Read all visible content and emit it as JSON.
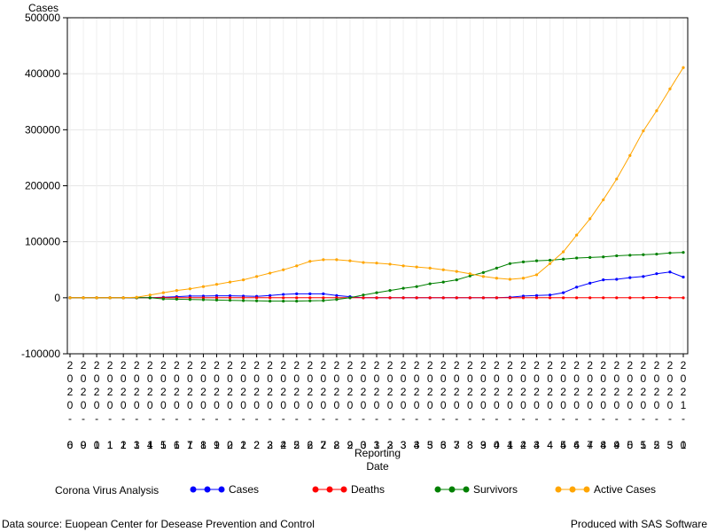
{
  "chart_data": {
    "type": "line",
    "ylabel": "Cases",
    "xlabel_line1": "Reporting",
    "xlabel_line2": "Date",
    "ylim": [
      -100000,
      500000
    ],
    "yticks": [
      -100000,
      0,
      100000,
      200000,
      300000,
      400000,
      500000
    ],
    "grid": true,
    "categories": [
      "2020-06",
      "2020-09",
      "2020-10",
      "2020-11",
      "2020-12",
      "2020-13",
      "2020-14",
      "2020-15",
      "2020-16",
      "2020-17",
      "2020-18",
      "2020-19",
      "2020-20",
      "2020-21",
      "2020-22",
      "2020-23",
      "2020-24",
      "2020-25",
      "2020-26",
      "2020-27",
      "2020-28",
      "2020-29",
      "2020-30",
      "2020-31",
      "2020-32",
      "2020-33",
      "2020-34",
      "2020-35",
      "2020-36",
      "2020-37",
      "2020-38",
      "2020-39",
      "2020-40",
      "2020-41",
      "2020-42",
      "2020-43",
      "2020-44",
      "2020-45",
      "2020-46",
      "2020-47",
      "2020-48",
      "2020-49",
      "2020-50",
      "2020-51",
      "2020-52",
      "2020-53",
      "2021-01"
    ],
    "series": [
      {
        "name": "Cases",
        "color": "#0000ff",
        "values": [
          0,
          0,
          0,
          0,
          0,
          0,
          0,
          1000,
          2000,
          3000,
          3000,
          3500,
          3500,
          3000,
          2500,
          4000,
          6000,
          7000,
          7000,
          7000,
          4000,
          2000,
          0,
          0,
          0,
          0,
          0,
          0,
          0,
          0,
          0,
          0,
          0,
          1000,
          3000,
          4000,
          5000,
          9000,
          19000,
          26000,
          32000,
          33000,
          36000,
          38000,
          43000,
          46000,
          37000
        ]
      },
      {
        "name": "Deaths",
        "color": "#ff0000",
        "values": [
          0,
          0,
          0,
          0,
          0,
          0,
          0,
          0,
          0,
          0,
          0,
          0,
          0,
          0,
          0,
          0,
          0,
          0,
          0,
          0,
          0,
          0,
          0,
          0,
          0,
          0,
          0,
          0,
          0,
          0,
          0,
          0,
          0,
          0,
          0,
          0,
          0,
          0,
          0,
          0,
          0,
          0,
          0,
          0,
          500,
          0,
          0
        ]
      },
      {
        "name": "Survivors",
        "color": "#008000",
        "values": [
          0,
          0,
          0,
          0,
          0,
          0,
          0,
          -2000,
          -2500,
          -3000,
          -3500,
          -4000,
          -4500,
          -5000,
          -5500,
          -6000,
          -6000,
          -6000,
          -5500,
          -5000,
          -3000,
          0,
          5000,
          9000,
          13000,
          17000,
          20000,
          25000,
          28000,
          32000,
          39000,
          45000,
          53000,
          61000,
          64000,
          66000,
          67000,
          69000,
          71000,
          72000,
          73000,
          75000,
          76000,
          77000,
          78000,
          80000,
          81000
        ]
      },
      {
        "name": "Active Cases",
        "color": "#ffa500",
        "values": [
          0,
          0,
          0,
          0,
          0,
          1000,
          5000,
          9000,
          13000,
          16000,
          20000,
          24000,
          28000,
          32000,
          38000,
          44000,
          50000,
          57000,
          65000,
          68000,
          68000,
          66000,
          63000,
          62000,
          60000,
          57000,
          55000,
          53000,
          50000,
          47000,
          43000,
          38000,
          35000,
          33000,
          35000,
          41000,
          61000,
          82000,
          112000,
          141000,
          175000,
          212000,
          254000,
          298000,
          334000,
          373000,
          411000
        ]
      }
    ]
  },
  "legend": {
    "title": "Corona Virus Analysis",
    "items": [
      "Cases",
      "Deaths",
      "Survivors",
      "Active Cases"
    ]
  },
  "footer": {
    "left": "Data source: Euopean Center for Desease Prevention and Control",
    "right": "Produced with SAS Software"
  }
}
